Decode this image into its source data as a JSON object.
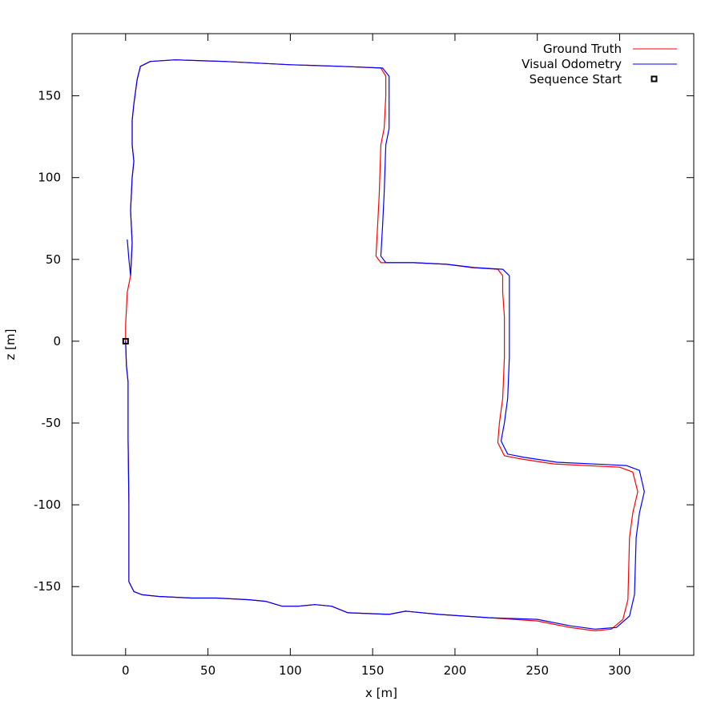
{
  "chart_data": {
    "type": "line",
    "title": "",
    "xlabel": "x [m]",
    "ylabel": "z [m]",
    "xlim": [
      -32.5,
      345
    ],
    "ylim": [
      -192,
      188
    ],
    "xticks": [
      0,
      50,
      100,
      150,
      200,
      250,
      300
    ],
    "yticks": [
      -150,
      -100,
      -50,
      0,
      50,
      100,
      150
    ],
    "grid": false,
    "legend_position": "top-right",
    "series": [
      {
        "name": "Ground Truth",
        "color": "#ff0000",
        "style": "line",
        "points": [
          [
            0,
            0
          ],
          [
            0.5,
            -15
          ],
          [
            1.5,
            -25
          ],
          [
            1.5,
            -60
          ],
          [
            2,
            -100
          ],
          [
            2,
            -135
          ],
          [
            2,
            -147
          ],
          [
            5,
            -153
          ],
          [
            10,
            -155
          ],
          [
            20,
            -156
          ],
          [
            40,
            -157
          ],
          [
            55,
            -157
          ],
          [
            75,
            -158
          ],
          [
            85,
            -159
          ],
          [
            95,
            -162
          ],
          [
            105,
            -162
          ],
          [
            115,
            -161
          ],
          [
            125,
            -162
          ],
          [
            135,
            -166
          ],
          [
            160,
            -167
          ],
          [
            170,
            -165
          ],
          [
            190,
            -167
          ],
          [
            220,
            -169
          ],
          [
            250,
            -171
          ],
          [
            270,
            -175
          ],
          [
            285,
            -177
          ],
          [
            295,
            -176
          ],
          [
            302,
            -170
          ],
          [
            305,
            -158
          ],
          [
            306,
            -120
          ],
          [
            308,
            -105
          ],
          [
            311,
            -92
          ],
          [
            308,
            -80
          ],
          [
            300,
            -77
          ],
          [
            260,
            -75
          ],
          [
            240,
            -72
          ],
          [
            230,
            -70
          ],
          [
            226,
            -62
          ],
          [
            227,
            -50
          ],
          [
            229,
            -35
          ],
          [
            230,
            -10
          ],
          [
            230,
            15
          ],
          [
            229,
            30
          ],
          [
            229,
            40
          ],
          [
            226,
            44
          ],
          [
            210,
            45
          ],
          [
            195,
            47
          ],
          [
            175,
            48
          ],
          [
            155,
            48
          ],
          [
            152,
            52
          ],
          [
            153,
            70
          ],
          [
            154,
            90
          ],
          [
            155,
            120
          ],
          [
            157,
            130
          ],
          [
            158,
            150
          ],
          [
            158,
            162
          ],
          [
            155,
            167
          ],
          [
            130,
            168
          ],
          [
            100,
            169
          ],
          [
            60,
            171
          ],
          [
            30,
            172
          ],
          [
            15,
            171
          ],
          [
            9,
            168
          ],
          [
            7,
            160
          ],
          [
            5,
            145
          ],
          [
            4,
            135
          ],
          [
            4,
            120
          ],
          [
            5,
            110
          ],
          [
            4,
            100
          ],
          [
            3,
            80
          ],
          [
            4,
            60
          ],
          [
            3,
            40
          ],
          [
            1,
            30
          ],
          [
            0,
            10
          ],
          [
            0,
            0
          ]
        ]
      },
      {
        "name": "Visual Odometry",
        "color": "#0000ff",
        "style": "line",
        "points": [
          [
            0,
            0
          ],
          [
            0.5,
            -15
          ],
          [
            1.5,
            -25
          ],
          [
            1.5,
            -60
          ],
          [
            2,
            -100
          ],
          [
            2,
            -135
          ],
          [
            2,
            -147
          ],
          [
            5,
            -153
          ],
          [
            10,
            -155
          ],
          [
            20,
            -156
          ],
          [
            40,
            -157
          ],
          [
            55,
            -157
          ],
          [
            75,
            -158
          ],
          [
            85,
            -159
          ],
          [
            95,
            -162
          ],
          [
            105,
            -162
          ],
          [
            115,
            -161
          ],
          [
            125,
            -162
          ],
          [
            135,
            -166
          ],
          [
            160,
            -167
          ],
          [
            170,
            -165
          ],
          [
            190,
            -167
          ],
          [
            220,
            -169
          ],
          [
            250,
            -170
          ],
          [
            270,
            -174
          ],
          [
            285,
            -176
          ],
          [
            298,
            -175
          ],
          [
            306,
            -168
          ],
          [
            309,
            -155
          ],
          [
            310,
            -120
          ],
          [
            312,
            -105
          ],
          [
            315,
            -92
          ],
          [
            312,
            -79
          ],
          [
            304,
            -76
          ],
          [
            262,
            -74
          ],
          [
            242,
            -71
          ],
          [
            232,
            -69
          ],
          [
            228,
            -61
          ],
          [
            230,
            -50
          ],
          [
            232,
            -35
          ],
          [
            233,
            -10
          ],
          [
            233,
            15
          ],
          [
            233,
            30
          ],
          [
            233,
            40
          ],
          [
            229,
            44
          ],
          [
            212,
            45
          ],
          [
            195,
            47
          ],
          [
            175,
            48
          ],
          [
            158,
            48
          ],
          [
            155,
            52
          ],
          [
            156,
            70
          ],
          [
            157,
            90
          ],
          [
            158,
            120
          ],
          [
            160,
            130
          ],
          [
            160,
            150
          ],
          [
            160,
            162
          ],
          [
            156,
            167
          ],
          [
            131,
            168
          ],
          [
            100,
            169
          ],
          [
            60,
            171
          ],
          [
            30,
            172
          ],
          [
            15,
            171
          ],
          [
            9,
            168
          ],
          [
            7,
            160
          ],
          [
            5,
            145
          ],
          [
            4,
            135
          ],
          [
            4,
            120
          ],
          [
            5,
            110
          ],
          [
            4,
            100
          ],
          [
            3,
            80
          ],
          [
            4,
            60
          ],
          [
            3,
            40
          ],
          [
            2,
            50
          ],
          [
            1,
            62
          ]
        ]
      }
    ],
    "markers": [
      {
        "name": "Sequence Start",
        "x": 0,
        "z": 0,
        "shape": "open-square",
        "color": "#000000"
      }
    ]
  },
  "legend": {
    "ground_truth_label": "Ground Truth",
    "visual_odometry_label": "Visual Odometry",
    "sequence_start_label": "Sequence Start"
  },
  "axes": {
    "x_label": "x [m]",
    "y_label": "z [m]"
  }
}
